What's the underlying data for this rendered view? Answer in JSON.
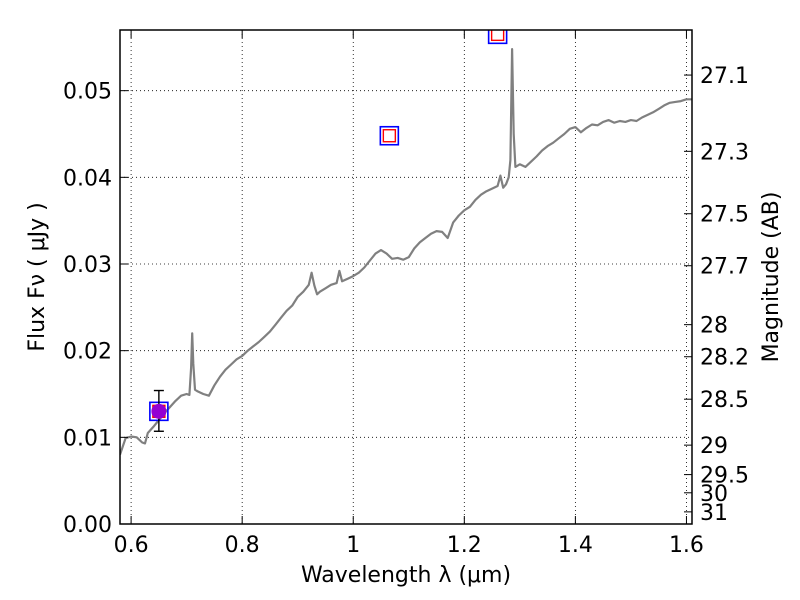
{
  "chart_data": {
    "type": "line",
    "xlabel": "Wavelength  λ (μm)",
    "ylabel": "Flux  Fν  ( μJy )",
    "y2label": "Magnitude (AB)",
    "xlim": [
      0.58,
      1.61
    ],
    "ylim": [
      0.0,
      0.057
    ],
    "grid": true,
    "x_ticks": [
      0.6,
      0.8,
      1.0,
      1.2,
      1.4,
      1.6
    ],
    "x_tick_labels": [
      "0.6",
      "0.8",
      "1",
      "1.2",
      "1.4",
      "1.6"
    ],
    "y_ticks": [
      0.0,
      0.01,
      0.02,
      0.03,
      0.04,
      0.05
    ],
    "y_tick_labels": [
      "0.00",
      "0.01",
      "0.02",
      "0.03",
      "0.04",
      "0.05"
    ],
    "y2_ticks": [
      {
        "label": "27.1",
        "flux": 0.0518
      },
      {
        "label": "27.3",
        "flux": 0.043
      },
      {
        "label": "27.5",
        "flux": 0.0358
      },
      {
        "label": "27.7",
        "flux": 0.0298
      },
      {
        "label": "28",
        "flux": 0.023
      },
      {
        "label": "28.2",
        "flux": 0.0193
      },
      {
        "label": "28.5",
        "flux": 0.0144
      },
      {
        "label": "29",
        "flux": 0.0091
      },
      {
        "label": "29.5",
        "flux": 0.0057
      },
      {
        "label": "30",
        "flux": 0.0036
      },
      {
        "label": "31",
        "flux": 0.0014
      }
    ],
    "series": [
      {
        "kind": "model-spectrum",
        "color": "#808080",
        "x": [
          0.58,
          0.59,
          0.6,
          0.61,
          0.62,
          0.625,
          0.63,
          0.64,
          0.65,
          0.66,
          0.67,
          0.68,
          0.69,
          0.7,
          0.705,
          0.708,
          0.71,
          0.712,
          0.715,
          0.72,
          0.73,
          0.74,
          0.75,
          0.76,
          0.77,
          0.78,
          0.79,
          0.8,
          0.81,
          0.82,
          0.83,
          0.84,
          0.85,
          0.86,
          0.87,
          0.88,
          0.89,
          0.9,
          0.91,
          0.92,
          0.925,
          0.93,
          0.935,
          0.94,
          0.95,
          0.96,
          0.97,
          0.975,
          0.98,
          0.99,
          1.0,
          1.01,
          1.02,
          1.03,
          1.04,
          1.05,
          1.06,
          1.07,
          1.08,
          1.09,
          1.1,
          1.11,
          1.12,
          1.13,
          1.14,
          1.15,
          1.16,
          1.17,
          1.18,
          1.19,
          1.2,
          1.21,
          1.22,
          1.23,
          1.24,
          1.25,
          1.26,
          1.265,
          1.27,
          1.275,
          1.28,
          1.283,
          1.286,
          1.289,
          1.292,
          1.3,
          1.31,
          1.32,
          1.33,
          1.34,
          1.35,
          1.36,
          1.37,
          1.38,
          1.39,
          1.4,
          1.41,
          1.42,
          1.43,
          1.44,
          1.45,
          1.46,
          1.47,
          1.48,
          1.49,
          1.5,
          1.51,
          1.52,
          1.53,
          1.54,
          1.55,
          1.56,
          1.57,
          1.58,
          1.59,
          1.6,
          1.61
        ],
        "y": [
          0.008,
          0.0099,
          0.0101,
          0.01,
          0.0094,
          0.0093,
          0.0105,
          0.0112,
          0.012,
          0.0128,
          0.0135,
          0.0142,
          0.0148,
          0.015,
          0.0149,
          0.018,
          0.022,
          0.0185,
          0.0155,
          0.0153,
          0.015,
          0.0148,
          0.016,
          0.017,
          0.0178,
          0.0184,
          0.019,
          0.0194,
          0.02,
          0.0205,
          0.021,
          0.0216,
          0.0222,
          0.023,
          0.0238,
          0.0246,
          0.0252,
          0.0262,
          0.0268,
          0.0276,
          0.029,
          0.0275,
          0.0265,
          0.0268,
          0.0272,
          0.0276,
          0.0278,
          0.0292,
          0.028,
          0.0283,
          0.0286,
          0.029,
          0.0296,
          0.0304,
          0.0312,
          0.0316,
          0.0312,
          0.0306,
          0.0307,
          0.0305,
          0.0308,
          0.0318,
          0.0325,
          0.033,
          0.0335,
          0.0338,
          0.0337,
          0.033,
          0.0348,
          0.0356,
          0.0362,
          0.0366,
          0.0374,
          0.038,
          0.0384,
          0.0387,
          0.039,
          0.0402,
          0.0388,
          0.0392,
          0.04,
          0.042,
          0.0548,
          0.045,
          0.0412,
          0.0415,
          0.0412,
          0.0418,
          0.0424,
          0.0431,
          0.0436,
          0.044,
          0.0445,
          0.045,
          0.0456,
          0.0458,
          0.0452,
          0.0457,
          0.0461,
          0.046,
          0.0464,
          0.0466,
          0.0463,
          0.0465,
          0.0464,
          0.0466,
          0.0465,
          0.0469,
          0.0472,
          0.0475,
          0.0479,
          0.0483,
          0.0486,
          0.0487,
          0.0488,
          0.049,
          0.049
        ]
      }
    ],
    "model_photometry": [
      {
        "x": 0.65,
        "y": 0.013
      },
      {
        "x": 1.065,
        "y": 0.0448
      },
      {
        "x": 1.26,
        "y": 0.0565
      }
    ],
    "observed_points": [
      {
        "x": 0.65,
        "y": 0.013,
        "yerr_low": 0.0107,
        "yerr_high": 0.0154,
        "color": "#9400d3"
      }
    ],
    "colors": {
      "spectrum": "#808080",
      "model_marker_outer": "#0000ff",
      "model_marker_inner": "#ff0000",
      "observed_marker": "#9400d3"
    }
  }
}
